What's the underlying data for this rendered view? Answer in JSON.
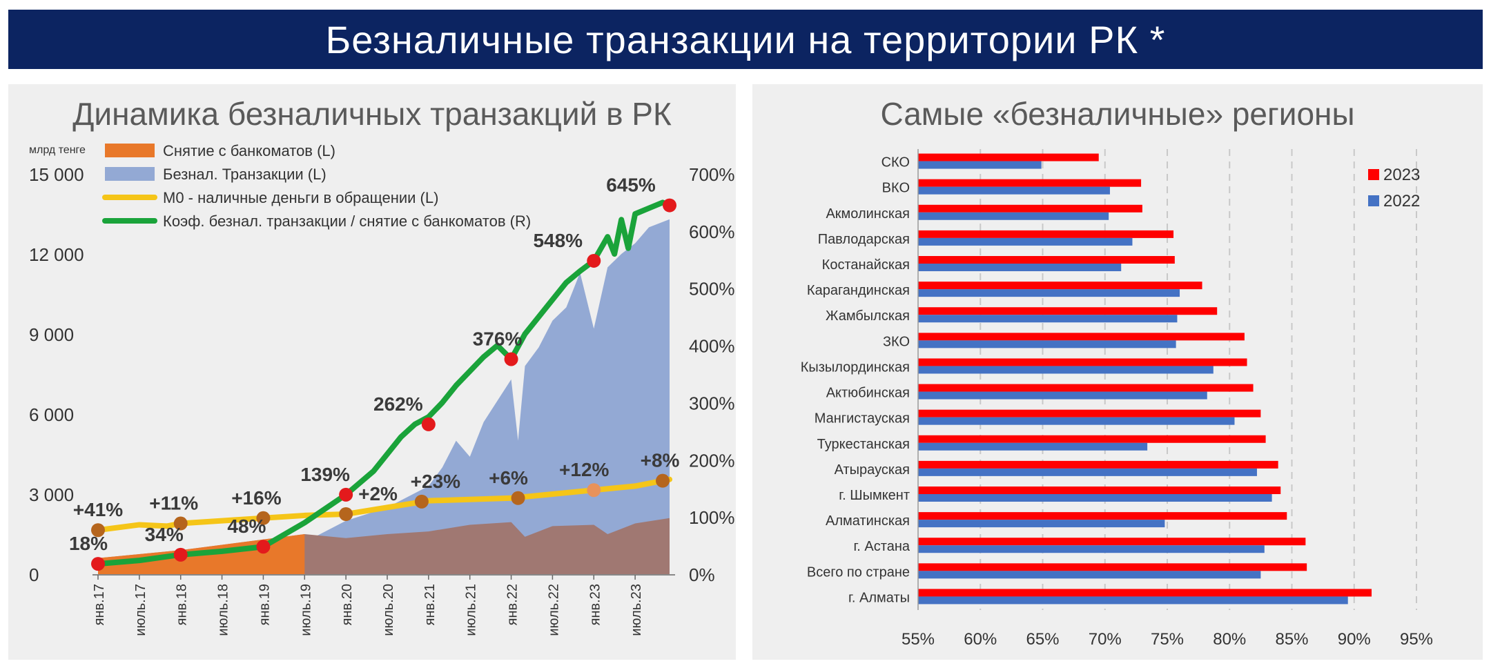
{
  "header": {
    "title": "Безналичные транзакции на территории РК *"
  },
  "chart_data": [
    {
      "type": "area",
      "title": "Динамика безналичных транзакций в РК",
      "ylabel": "млрд тенге",
      "ylim": [
        0,
        15000
      ],
      "ylim_right": [
        0,
        7
      ],
      "y_ticks": [
        "0",
        "3 000",
        "6 000",
        "9 000",
        "12 000",
        "15 000"
      ],
      "y_ticks_right": [
        "0%",
        "100%",
        "200%",
        "300%",
        "400%",
        "500%",
        "600%",
        "700%"
      ],
      "x_tick_labels": [
        "янв.17",
        "июль.17",
        "янв.18",
        "июль.18",
        "янв.19",
        "июль.19",
        "янв.20",
        "июль.20",
        "янв.21",
        "июль.21",
        "янв.22",
        "июль.22",
        "янв.23",
        "июль.23"
      ],
      "x_range": [
        0,
        83
      ],
      "legend": {
        "placement": "top-left",
        "items": [
          {
            "label": "Снятие с банкоматов (L)",
            "color": "#e8782a",
            "kind": "area"
          },
          {
            "label": "Безнал. Транзакции (L)",
            "color": "#93a9d4",
            "kind": "area"
          },
          {
            "label": "М0 - наличные деньги в обращении (L)",
            "color": "#f5c518",
            "kind": "line"
          },
          {
            "label": "Коэф. безнал. транзакции / снятие с банкоматов (R)",
            "color": "#1aa33a",
            "kind": "line"
          }
        ]
      },
      "series": [
        {
          "name": "Безнал. Транзакции (L)",
          "axis": "left",
          "color": "#93a9d4",
          "points": [
            [
              0,
              150
            ],
            [
              12,
              350
            ],
            [
              24,
              800
            ],
            [
              30,
              1200
            ],
            [
              36,
              2000
            ],
            [
              42,
              2500
            ],
            [
              48,
              3300
            ],
            [
              50,
              4000
            ],
            [
              52,
              5000
            ],
            [
              54,
              4400
            ],
            [
              56,
              5700
            ],
            [
              58,
              6500
            ],
            [
              60,
              7300
            ],
            [
              61,
              5000
            ],
            [
              62,
              7800
            ],
            [
              64,
              8500
            ],
            [
              66,
              9500
            ],
            [
              68,
              10000
            ],
            [
              70,
              11300
            ],
            [
              72,
              9200
            ],
            [
              74,
              11500
            ],
            [
              76,
              12000
            ],
            [
              78,
              12400
            ],
            [
              80,
              13000
            ],
            [
              83,
              13300
            ]
          ]
        },
        {
          "name": "Снятие с банкоматов (L)",
          "axis": "left",
          "color": "#a07872",
          "points": [
            [
              0,
              600
            ],
            [
              6,
              750
            ],
            [
              12,
              900
            ],
            [
              18,
              1100
            ],
            [
              24,
              1300
            ],
            [
              30,
              1500
            ],
            [
              36,
              1350
            ],
            [
              42,
              1500
            ],
            [
              48,
              1600
            ],
            [
              54,
              1850
            ],
            [
              60,
              1950
            ],
            [
              62,
              1400
            ],
            [
              66,
              1800
            ],
            [
              72,
              1850
            ],
            [
              74,
              1500
            ],
            [
              78,
              1900
            ],
            [
              83,
              2100
            ]
          ]
        },
        {
          "name": "Снятие с банкоматов (L)",
          "axis": "left",
          "color": "#e8782a",
          "points": [
            [
              0,
              600
            ],
            [
              6,
              750
            ],
            [
              12,
              900
            ],
            [
              18,
              1100
            ],
            [
              24,
              1300
            ],
            [
              30,
              1500
            ]
          ]
        },
        {
          "name": "М0 - наличные деньги в обращении (L)",
          "axis": "left",
          "color": "#f5c518",
          "points": [
            [
              0,
              1650
            ],
            [
              6,
              1850
            ],
            [
              10,
              1800
            ],
            [
              12,
              1900
            ],
            [
              18,
              2000
            ],
            [
              24,
              2100
            ],
            [
              30,
              2200
            ],
            [
              36,
              2250
            ],
            [
              42,
              2500
            ],
            [
              48,
              2750
            ],
            [
              54,
              2800
            ],
            [
              60,
              2850
            ],
            [
              66,
              3000
            ],
            [
              72,
              3150
            ],
            [
              78,
              3300
            ],
            [
              83,
              3550
            ]
          ]
        },
        {
          "name": "Коэф. безнал. транзакции / снятие с банкоматов (R)",
          "axis": "right",
          "color": "#1aa33a",
          "points": [
            [
              0,
              0.18
            ],
            [
              6,
              0.24
            ],
            [
              12,
              0.34
            ],
            [
              18,
              0.4
            ],
            [
              24,
              0.48
            ],
            [
              30,
              0.9
            ],
            [
              36,
              1.39
            ],
            [
              40,
              1.8
            ],
            [
              42,
              2.1
            ],
            [
              44,
              2.4
            ],
            [
              46,
              2.62
            ],
            [
              48,
              2.75
            ],
            [
              50,
              3.0
            ],
            [
              52,
              3.3
            ],
            [
              54,
              3.55
            ],
            [
              56,
              3.8
            ],
            [
              58,
              4.0
            ],
            [
              60,
              3.76
            ],
            [
              62,
              4.2
            ],
            [
              64,
              4.5
            ],
            [
              66,
              4.8
            ],
            [
              68,
              5.1
            ],
            [
              70,
              5.3
            ],
            [
              72,
              5.48
            ],
            [
              74,
              5.9
            ],
            [
              75,
              5.6
            ],
            [
              76,
              6.2
            ],
            [
              77,
              5.7
            ],
            [
              78,
              6.3
            ],
            [
              80,
              6.4
            ],
            [
              82,
              6.5
            ],
            [
              83,
              6.45
            ]
          ]
        }
      ],
      "annotations": [
        {
          "label": "+41%",
          "x": 0,
          "y": 1650,
          "axis": "left",
          "color": "#b5651d",
          "dx": 0,
          "anchor": "middle"
        },
        {
          "label": "+11%",
          "x": 12,
          "y": 1900,
          "axis": "left",
          "color": "#b5651d",
          "dx": -10,
          "anchor": "middle"
        },
        {
          "label": "+16%",
          "x": 24,
          "y": 2100,
          "axis": "left",
          "color": "#b5651d",
          "dx": -10,
          "anchor": "middle"
        },
        {
          "label": "+2%",
          "x": 36,
          "y": 2250,
          "axis": "left",
          "color": "#b5651d",
          "dx": 18,
          "anchor": "start"
        },
        {
          "label": "+23%",
          "x": 47,
          "y": 2720,
          "axis": "left",
          "color": "#b5651d",
          "dx": 20,
          "anchor": "middle"
        },
        {
          "label": "+6%",
          "x": 61,
          "y": 2850,
          "axis": "left",
          "color": "#b5651d",
          "dx": -14,
          "anchor": "middle"
        },
        {
          "label": "+12%",
          "x": 72,
          "y": 3150,
          "axis": "left",
          "color": "#e8925a",
          "dx": -14,
          "anchor": "middle"
        },
        {
          "label": "+8%",
          "x": 82,
          "y": 3500,
          "axis": "left",
          "color": "#b5651d",
          "dx": -4,
          "anchor": "middle"
        },
        {
          "label": "18%",
          "x": 0,
          "y": 0.18,
          "axis": "right",
          "color": "#e31a1c",
          "dx": -14,
          "anchor": "middle"
        },
        {
          "label": "34%",
          "x": 12,
          "y": 0.34,
          "axis": "right",
          "color": "#e31a1c",
          "dx": -24,
          "anchor": "middle"
        },
        {
          "label": "48%",
          "x": 24,
          "y": 0.48,
          "axis": "right",
          "color": "#e31a1c",
          "dx": -24,
          "anchor": "middle"
        },
        {
          "label": "139%",
          "x": 36,
          "y": 1.39,
          "axis": "right",
          "color": "#e31a1c",
          "dx": -30,
          "anchor": "middle"
        },
        {
          "label": "262%",
          "x": 48,
          "y": 2.62,
          "axis": "right",
          "color": "#e31a1c",
          "dx": -44,
          "anchor": "middle"
        },
        {
          "label": "376%",
          "x": 60,
          "y": 3.76,
          "axis": "right",
          "color": "#e31a1c",
          "dx": -20,
          "anchor": "middle"
        },
        {
          "label": "548%",
          "x": 72,
          "y": 5.48,
          "axis": "right",
          "color": "#e31a1c",
          "dx": -52,
          "anchor": "middle"
        },
        {
          "label": "645%",
          "x": 83,
          "y": 6.45,
          "axis": "right",
          "color": "#e31a1c",
          "dx": -56,
          "anchor": "middle"
        }
      ]
    },
    {
      "type": "bar",
      "orientation": "horizontal",
      "title": "Самые «безналичные» регионы",
      "xlim": [
        0.55,
        0.95
      ],
      "x_ticks": [
        "55%",
        "60%",
        "65%",
        "70%",
        "75%",
        "80%",
        "85%",
        "90%",
        "95%"
      ],
      "grid": "vertical-dashed",
      "legend": {
        "placement": "top-right"
      },
      "categories": [
        "СКО",
        "ВКО",
        "Акмолинская",
        "Павлодарская",
        "Костанайская",
        "Карагандинская",
        "Жамбылская",
        "ЗКО",
        "Кызылординская",
        "Актюбинская",
        "Мангистауская",
        "Туркестанская",
        "Атырауская",
        "г. Шымкент",
        "Алматинская",
        "г. Астана",
        "Всего по стране",
        "г. Алматы"
      ],
      "series": [
        {
          "name": "2023",
          "color": "#ff0000",
          "values": [
            0.695,
            0.729,
            0.73,
            0.755,
            0.756,
            0.778,
            0.79,
            0.812,
            0.814,
            0.819,
            0.825,
            0.829,
            0.839,
            0.841,
            0.846,
            0.861,
            0.862,
            0.914
          ]
        },
        {
          "name": "2022",
          "color": "#4472c4",
          "values": [
            0.649,
            0.704,
            0.703,
            0.722,
            0.713,
            0.76,
            0.758,
            0.757,
            0.787,
            0.782,
            0.804,
            0.734,
            0.822,
            0.834,
            0.748,
            0.828,
            0.825,
            0.895
          ]
        }
      ]
    }
  ]
}
